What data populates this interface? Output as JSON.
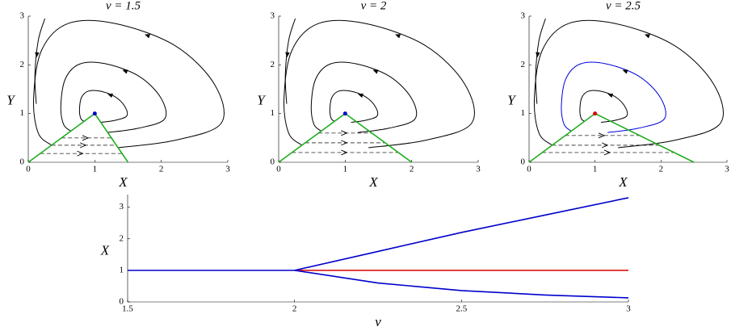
{
  "chart_data": [
    {
      "type": "phase",
      "title": "ν = 1.5",
      "xlabel": "X",
      "ylabel": "Y",
      "xlim": [
        0,
        3
      ],
      "ylim": [
        0,
        3
      ],
      "xticks": [
        0,
        1,
        2,
        3
      ],
      "yticks": [
        0,
        1,
        2,
        3
      ],
      "trajectories": [
        {
          "color": "#000000",
          "x": [
            1.35,
            2.2,
            2.9,
            2.8,
            2.2,
            1.3,
            0.6,
            0.2,
            0.08,
            0.15,
            0.35
          ],
          "y": [
            0.3,
            0.45,
            0.8,
            1.6,
            2.4,
            2.85,
            2.85,
            2.3,
            1.3,
            0.6,
            0.35
          ]
        },
        {
          "color": "#000000",
          "x": [
            1.19,
            1.66,
            2.05,
            1.99,
            1.66,
            1.17,
            0.78,
            0.56,
            0.49,
            0.53,
            0.64
          ],
          "y": [
            0.61,
            0.7,
            0.89,
            1.33,
            1.77,
            2.02,
            2.02,
            1.72,
            1.17,
            0.78,
            0.64
          ]
        },
        {
          "color": "#000000",
          "x": [
            1.09,
            1.3,
            1.48,
            1.45,
            1.3,
            1.08,
            0.9,
            0.8,
            0.77,
            0.79,
            0.84
          ],
          "y": [
            0.82,
            0.86,
            0.95,
            1.15,
            1.35,
            1.46,
            1.46,
            1.33,
            1.08,
            0.9,
            0.84
          ]
        },
        {
          "color": "#000000",
          "x": [
            0.25,
            0.15,
            0.1,
            0.12
          ],
          "y": [
            2.95,
            2.5,
            1.8,
            1.2
          ]
        }
      ],
      "jumps": [
        {
          "x": [
            0.18,
            1.41
          ],
          "y": [
            0.18,
            0.18
          ]
        },
        {
          "x": [
            0.35,
            1.33
          ],
          "y": [
            0.35,
            0.35
          ]
        },
        {
          "x": [
            0.5,
            1.25
          ],
          "y": [
            0.5,
            0.5
          ]
        }
      ],
      "boundary": {
        "color": "#1fae1f",
        "x": [
          0,
          1,
          1.5
        ],
        "y": [
          0,
          1,
          0
        ]
      },
      "fixed_point": {
        "color": "#0000cc",
        "x": 1,
        "y": 1
      }
    },
    {
      "type": "phase",
      "title": "ν = 2",
      "xlabel": "X",
      "ylabel": "Y",
      "xlim": [
        0,
        3
      ],
      "ylim": [
        0,
        3
      ],
      "xticks": [
        0,
        1,
        2,
        3
      ],
      "yticks": [
        0,
        1,
        2,
        3
      ],
      "trajectories": [
        {
          "color": "#000000",
          "x": [
            1.35,
            2.2,
            2.9,
            2.8,
            2.2,
            1.3,
            0.6,
            0.2,
            0.08,
            0.15,
            0.35
          ],
          "y": [
            0.3,
            0.45,
            0.8,
            1.6,
            2.4,
            2.85,
            2.85,
            2.3,
            1.3,
            0.6,
            0.35
          ]
        },
        {
          "color": "#000000",
          "x": [
            1.19,
            1.66,
            2.05,
            1.99,
            1.66,
            1.17,
            0.78,
            0.56,
            0.49,
            0.53,
            0.64
          ],
          "y": [
            0.61,
            0.7,
            0.89,
            1.33,
            1.77,
            2.02,
            2.02,
            1.72,
            1.17,
            0.78,
            0.64
          ]
        },
        {
          "color": "#000000",
          "x": [
            1.09,
            1.3,
            1.48,
            1.45,
            1.3,
            1.08,
            0.9,
            0.8,
            0.77,
            0.79,
            0.84
          ],
          "y": [
            0.82,
            0.86,
            0.95,
            1.15,
            1.35,
            1.46,
            1.46,
            1.33,
            1.08,
            0.9,
            0.84
          ]
        },
        {
          "color": "#000000",
          "x": [
            0.25,
            0.15,
            0.1,
            0.12
          ],
          "y": [
            2.95,
            2.5,
            1.8,
            1.2
          ]
        }
      ],
      "jumps": [
        {
          "x": [
            0.2,
            1.8
          ],
          "y": [
            0.2,
            0.2
          ]
        },
        {
          "x": [
            0.4,
            1.6
          ],
          "y": [
            0.4,
            0.4
          ]
        },
        {
          "x": [
            0.6,
            1.4
          ],
          "y": [
            0.6,
            0.6
          ]
        }
      ],
      "boundary": {
        "color": "#1fae1f",
        "x": [
          0,
          1,
          2
        ],
        "y": [
          0,
          1,
          0
        ]
      },
      "fixed_point": {
        "color": "#0000cc",
        "x": 1,
        "y": 1
      }
    },
    {
      "type": "phase",
      "title": "ν = 2.5",
      "xlabel": "X",
      "ylabel": "Y",
      "xlim": [
        0,
        3
      ],
      "ylim": [
        0,
        3
      ],
      "xticks": [
        0,
        1,
        2,
        3
      ],
      "yticks": [
        0,
        1,
        2,
        3
      ],
      "trajectories": [
        {
          "color": "#000000",
          "x": [
            1.35,
            2.2,
            2.9,
            2.8,
            2.2,
            1.3,
            0.6,
            0.2,
            0.08,
            0.15,
            0.35
          ],
          "y": [
            0.3,
            0.45,
            0.8,
            1.6,
            2.4,
            2.85,
            2.85,
            2.3,
            1.3,
            0.6,
            0.35
          ]
        },
        {
          "color": "#0000dd",
          "x": [
            1.19,
            1.66,
            2.05,
            1.99,
            1.66,
            1.17,
            0.78,
            0.56,
            0.49,
            0.53,
            0.64
          ],
          "y": [
            0.61,
            0.7,
            0.89,
            1.33,
            1.77,
            2.02,
            2.02,
            1.72,
            1.17,
            0.78,
            0.64
          ]
        },
        {
          "color": "#000000",
          "x": [
            1.09,
            1.3,
            1.48,
            1.45,
            1.3,
            1.08,
            0.9,
            0.8,
            0.77,
            0.79,
            0.84
          ],
          "y": [
            0.82,
            0.86,
            0.95,
            1.15,
            1.35,
            1.46,
            1.46,
            1.33,
            1.08,
            0.9,
            0.84
          ]
        },
        {
          "color": "#000000",
          "x": [
            0.25,
            0.15,
            0.1,
            0.12
          ],
          "y": [
            2.95,
            2.5,
            1.8,
            1.2
          ]
        }
      ],
      "jumps": [
        {
          "x": [
            0.2,
            2.2
          ],
          "y": [
            0.2,
            0.2
          ]
        },
        {
          "x": [
            0.35,
            1.98
          ],
          "y": [
            0.35,
            0.35
          ]
        },
        {
          "x": [
            0.55,
            1.68
          ],
          "y": [
            0.55,
            0.55
          ]
        }
      ],
      "boundary": {
        "color": "#1fae1f",
        "x": [
          0,
          1,
          2.5
        ],
        "y": [
          0,
          1,
          0
        ]
      },
      "fixed_point": {
        "color": "#dd0000",
        "x": 1,
        "y": 1
      }
    },
    {
      "type": "line",
      "xlabel": "ν",
      "ylabel": "X",
      "x": [
        1.5,
        1.75,
        2,
        2.25,
        2.5,
        2.75,
        3
      ],
      "xlim": [
        1.5,
        3
      ],
      "ylim": [
        0,
        3.4
      ],
      "xticks": [
        1.5,
        2,
        2.5,
        3
      ],
      "yticks": [
        0,
        1,
        2,
        3
      ],
      "series": [
        {
          "color": "#0000cc",
          "values": [
            1,
            1,
            1,
            null,
            null,
            null,
            null
          ]
        },
        {
          "color": "#dd0000",
          "values": [
            null,
            null,
            1,
            1,
            1,
            1,
            1
          ]
        },
        {
          "color": "#0000cc",
          "values": [
            null,
            null,
            1,
            1.6,
            2.2,
            2.75,
            3.3
          ]
        },
        {
          "color": "#0000cc",
          "values": [
            null,
            null,
            1,
            0.6,
            0.36,
            0.22,
            0.13
          ]
        }
      ]
    }
  ]
}
